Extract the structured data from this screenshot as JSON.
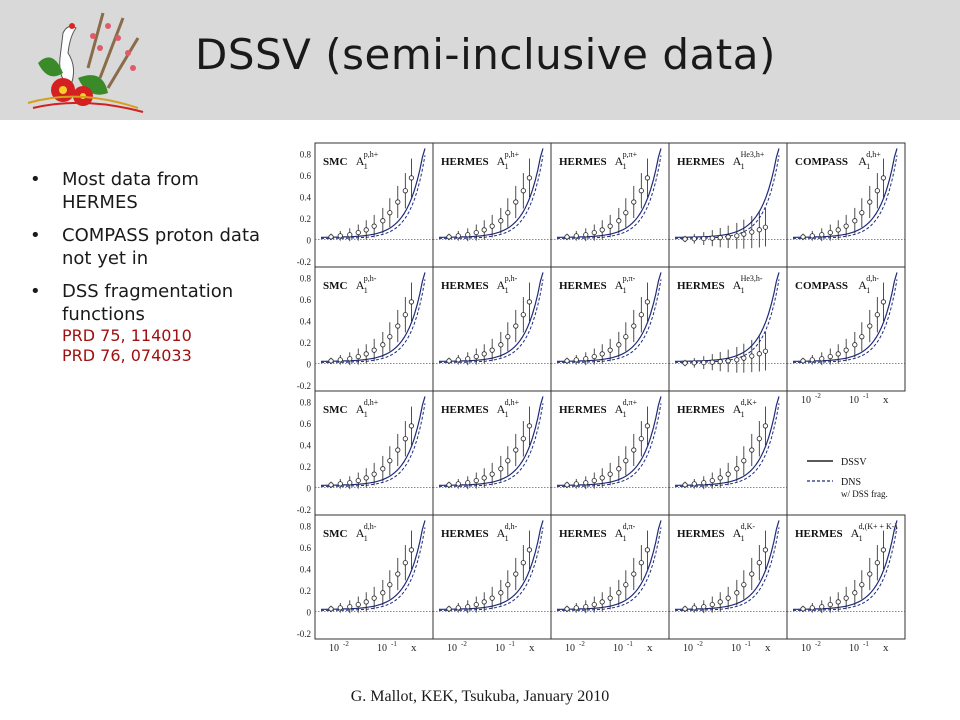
{
  "header": {
    "title": "DSSV (semi-inclusive data)"
  },
  "bullets": [
    {
      "text": "Most data from HERMES"
    },
    {
      "text": "COMPASS proton data not yet in"
    },
    {
      "text": "DSS fragmentation functions",
      "refs": [
        "PRD 75, 114010",
        "PRD 76, 074033"
      ]
    }
  ],
  "footer": {
    "text": "G. Mallot, KEK, Tsukuba, January 2010"
  },
  "colors": {
    "header_bg": "#d9d9d9",
    "ref_text": "#a01010",
    "theory_curve": "#1f2a7a"
  },
  "chart_data": {
    "type": "scatter",
    "y_tick_labels": [
      "0.8",
      "0.6",
      "0.4",
      "0.2",
      "0",
      "-0.2"
    ],
    "x_tick_labels": [
      "10",
      "-2",
      "10",
      "-1",
      "x"
    ],
    "ylim": [
      -0.2,
      0.9
    ],
    "legend": {
      "placement": "right",
      "entries": [
        {
          "name": "DSSV",
          "style": "solid"
        },
        {
          "name": "DNS",
          "style": "dashed",
          "note": "w/ DSS frag."
        }
      ]
    },
    "panels": [
      {
        "row": 0,
        "col": 0,
        "exp": "SMC",
        "sup": "p,h+"
      },
      {
        "row": 0,
        "col": 1,
        "exp": "HERMES",
        "sup": "p,h+"
      },
      {
        "row": 0,
        "col": 2,
        "exp": "HERMES",
        "sup": "p,π+"
      },
      {
        "row": 0,
        "col": 3,
        "exp": "HERMES",
        "sup": "He3,h+"
      },
      {
        "row": 0,
        "col": 4,
        "exp": "COMPASS",
        "sup": "d,h+"
      },
      {
        "row": 1,
        "col": 0,
        "exp": "SMC",
        "sup": "p,h-"
      },
      {
        "row": 1,
        "col": 1,
        "exp": "HERMES",
        "sup": "p,h-"
      },
      {
        "row": 1,
        "col": 2,
        "exp": "HERMES",
        "sup": "p,π-"
      },
      {
        "row": 1,
        "col": 3,
        "exp": "HERMES",
        "sup": "He3,h-"
      },
      {
        "row": 1,
        "col": 4,
        "exp": "COMPASS",
        "sup": "d,h-"
      },
      {
        "row": 2,
        "col": 0,
        "exp": "SMC",
        "sup": "d,h+"
      },
      {
        "row": 2,
        "col": 1,
        "exp": "HERMES",
        "sup": "d,h+"
      },
      {
        "row": 2,
        "col": 2,
        "exp": "HERMES",
        "sup": "d,π+"
      },
      {
        "row": 2,
        "col": 3,
        "exp": "HERMES",
        "sup": "d,K+"
      },
      {
        "row": 3,
        "col": 0,
        "exp": "SMC",
        "sup": "d,h-"
      },
      {
        "row": 3,
        "col": 1,
        "exp": "HERMES",
        "sup": "d,h-"
      },
      {
        "row": 3,
        "col": 2,
        "exp": "HERMES",
        "sup": "d,π-"
      },
      {
        "row": 3,
        "col": 3,
        "exp": "HERMES",
        "sup": "d,K-"
      },
      {
        "row": 3,
        "col": 4,
        "exp": "HERMES",
        "sup": "d,(K+ + K-)"
      }
    ],
    "series": {
      "x": [
        0.005,
        0.008,
        0.013,
        0.02,
        0.03,
        0.045,
        0.07,
        0.1,
        0.15,
        0.22,
        0.3
      ],
      "low": [
        0.01,
        0.02,
        0.03,
        0.04,
        0.06,
        0.09,
        0.13,
        0.2,
        0.28,
        0.36,
        0.45
      ],
      "high": [
        0.04,
        0.05,
        0.06,
        0.09,
        0.12,
        0.16,
        0.22,
        0.3,
        0.42,
        0.55,
        0.7
      ]
    }
  }
}
